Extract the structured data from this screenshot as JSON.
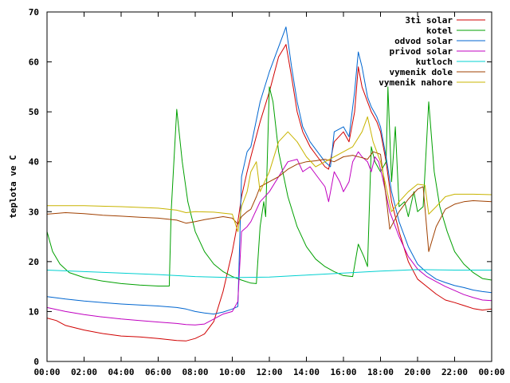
{
  "chart_data": {
    "type": "line",
    "title": "",
    "xlabel": "",
    "ylabel": "teplota ve C",
    "xlim": [
      0,
      24
    ],
    "ylim": [
      0,
      70
    ],
    "grid": false,
    "legend_position": "top-right",
    "x_tick_labels": [
      "00:00",
      "02:00",
      "04:00",
      "06:00",
      "08:00",
      "10:00",
      "12:00",
      "14:00",
      "16:00",
      "18:00",
      "20:00",
      "22:00",
      "00:00"
    ],
    "y_tick_labels": [
      "0",
      "10",
      "20",
      "30",
      "40",
      "50",
      "60",
      "70"
    ],
    "series": [
      {
        "name": "3ti solar",
        "color": "#d00000",
        "points": [
          [
            0,
            8.7
          ],
          [
            0.5,
            8.2
          ],
          [
            1,
            7.2
          ],
          [
            2,
            6.3
          ],
          [
            3,
            5.6
          ],
          [
            4,
            5.1
          ],
          [
            5,
            4.9
          ],
          [
            6,
            4.6
          ],
          [
            7,
            4.2
          ],
          [
            7.5,
            4.1
          ],
          [
            8,
            4.6
          ],
          [
            8.5,
            5.5
          ],
          [
            9,
            8
          ],
          [
            9.5,
            14
          ],
          [
            10,
            22
          ],
          [
            10.3,
            28
          ],
          [
            10.5,
            33
          ],
          [
            10.8,
            38
          ],
          [
            11,
            41
          ],
          [
            11.5,
            48
          ],
          [
            12,
            54
          ],
          [
            12.5,
            61
          ],
          [
            12.9,
            63.5
          ],
          [
            13.2,
            57
          ],
          [
            13.5,
            50
          ],
          [
            13.8,
            46
          ],
          [
            14.2,
            43
          ],
          [
            14.6,
            41
          ],
          [
            15,
            39
          ],
          [
            15.2,
            38.5
          ],
          [
            15.5,
            44
          ],
          [
            16,
            46
          ],
          [
            16.3,
            44
          ],
          [
            16.6,
            50
          ],
          [
            16.8,
            59
          ],
          [
            17,
            55
          ],
          [
            17.3,
            52
          ],
          [
            17.5,
            50
          ],
          [
            17.8,
            48
          ],
          [
            18,
            46
          ],
          [
            18.3,
            40
          ],
          [
            18.6,
            32
          ],
          [
            19,
            26
          ],
          [
            19.5,
            20
          ],
          [
            20,
            16.5
          ],
          [
            20.5,
            15
          ],
          [
            21,
            13.5
          ],
          [
            21.5,
            12.3
          ],
          [
            22,
            11.8
          ],
          [
            22.5,
            11.2
          ],
          [
            23,
            10.6
          ],
          [
            23.5,
            10.3
          ],
          [
            24,
            10.5
          ]
        ]
      },
      {
        "name": "kotel",
        "color": "#00a000",
        "points": [
          [
            0,
            26
          ],
          [
            0.3,
            22
          ],
          [
            0.7,
            19.5
          ],
          [
            1.2,
            17.8
          ],
          [
            2,
            16.8
          ],
          [
            3,
            16.1
          ],
          [
            4,
            15.6
          ],
          [
            5,
            15.3
          ],
          [
            6,
            15.1
          ],
          [
            6.6,
            15.1
          ],
          [
            6.7,
            30
          ],
          [
            7,
            50.5
          ],
          [
            7.3,
            40
          ],
          [
            7.6,
            32
          ],
          [
            8,
            26
          ],
          [
            8.5,
            22
          ],
          [
            9,
            19.5
          ],
          [
            9.5,
            18
          ],
          [
            10,
            17
          ],
          [
            10.5,
            16.3
          ],
          [
            11,
            15.7
          ],
          [
            11.3,
            15.6
          ],
          [
            11.5,
            27
          ],
          [
            11.7,
            32
          ],
          [
            11.8,
            29
          ],
          [
            12,
            55
          ],
          [
            12.2,
            52
          ],
          [
            12.5,
            42
          ],
          [
            13,
            33
          ],
          [
            13.5,
            27
          ],
          [
            14,
            23
          ],
          [
            14.5,
            20.5
          ],
          [
            15,
            19
          ],
          [
            15.5,
            18
          ],
          [
            16,
            17.2
          ],
          [
            16.5,
            17
          ],
          [
            16.8,
            23.5
          ],
          [
            17.1,
            21
          ],
          [
            17.3,
            19
          ],
          [
            17.5,
            43
          ],
          [
            17.7,
            40
          ],
          [
            18,
            38
          ],
          [
            18.3,
            40
          ],
          [
            18.4,
            55
          ],
          [
            18.6,
            36
          ],
          [
            18.8,
            47
          ],
          [
            19,
            31
          ],
          [
            19.3,
            32
          ],
          [
            19.5,
            29
          ],
          [
            19.8,
            34
          ],
          [
            20,
            30
          ],
          [
            20.3,
            31
          ],
          [
            20.6,
            52
          ],
          [
            20.9,
            38
          ],
          [
            21.2,
            31
          ],
          [
            21.6,
            26
          ],
          [
            22,
            22
          ],
          [
            22.5,
            19.5
          ],
          [
            23,
            17.8
          ],
          [
            23.5,
            16.6
          ],
          [
            24,
            16.3
          ]
        ]
      },
      {
        "name": "odvod solar",
        "color": "#0066d0",
        "points": [
          [
            0,
            13
          ],
          [
            1,
            12.5
          ],
          [
            2,
            12.1
          ],
          [
            3,
            11.8
          ],
          [
            4,
            11.5
          ],
          [
            5,
            11.3
          ],
          [
            6,
            11.1
          ],
          [
            7,
            10.8
          ],
          [
            7.5,
            10.5
          ],
          [
            8,
            10
          ],
          [
            8.5,
            9.7
          ],
          [
            9,
            9.5
          ],
          [
            9.5,
            9.9
          ],
          [
            10,
            10.5
          ],
          [
            10.3,
            11
          ],
          [
            10.5,
            37
          ],
          [
            10.8,
            42
          ],
          [
            11,
            43
          ],
          [
            11.5,
            52
          ],
          [
            12,
            58
          ],
          [
            12.5,
            63
          ],
          [
            12.9,
            67
          ],
          [
            13.2,
            59
          ],
          [
            13.5,
            52
          ],
          [
            13.8,
            47
          ],
          [
            14.2,
            44
          ],
          [
            14.6,
            42
          ],
          [
            15,
            40
          ],
          [
            15.3,
            39
          ],
          [
            15.5,
            46
          ],
          [
            16,
            47
          ],
          [
            16.3,
            45
          ],
          [
            16.6,
            54
          ],
          [
            16.8,
            62
          ],
          [
            17,
            59
          ],
          [
            17.3,
            53
          ],
          [
            17.5,
            51
          ],
          [
            17.8,
            49
          ],
          [
            18,
            47
          ],
          [
            18.3,
            41
          ],
          [
            18.6,
            34
          ],
          [
            19,
            28
          ],
          [
            19.5,
            23
          ],
          [
            20,
            19.5
          ],
          [
            20.5,
            17.8
          ],
          [
            21,
            16.5
          ],
          [
            21.5,
            15.8
          ],
          [
            22,
            15.2
          ],
          [
            22.5,
            14.8
          ],
          [
            23,
            14.3
          ],
          [
            23.5,
            14
          ],
          [
            24,
            13.8
          ]
        ]
      },
      {
        "name": "privod solar",
        "color": "#c000c0",
        "points": [
          [
            0,
            10.8
          ],
          [
            1,
            10
          ],
          [
            2,
            9.4
          ],
          [
            3,
            8.9
          ],
          [
            4,
            8.5
          ],
          [
            5,
            8.2
          ],
          [
            6,
            7.9
          ],
          [
            7,
            7.6
          ],
          [
            7.5,
            7.4
          ],
          [
            8,
            7.3
          ],
          [
            8.5,
            7.5
          ],
          [
            9,
            8.5
          ],
          [
            9.5,
            9.5
          ],
          [
            10,
            10
          ],
          [
            10.3,
            12
          ],
          [
            10.5,
            26
          ],
          [
            10.8,
            27
          ],
          [
            11,
            28
          ],
          [
            11.5,
            32
          ],
          [
            12,
            34
          ],
          [
            12.5,
            37
          ],
          [
            13,
            40
          ],
          [
            13.5,
            40.5
          ],
          [
            13.8,
            38
          ],
          [
            14.2,
            39
          ],
          [
            14.6,
            37
          ],
          [
            15,
            35
          ],
          [
            15.2,
            32
          ],
          [
            15.5,
            38
          ],
          [
            15.8,
            36
          ],
          [
            16,
            34
          ],
          [
            16.3,
            36
          ],
          [
            16.5,
            40
          ],
          [
            16.8,
            42
          ],
          [
            17,
            41
          ],
          [
            17.3,
            40
          ],
          [
            17.5,
            38
          ],
          [
            17.7,
            41
          ],
          [
            17.9,
            40
          ],
          [
            18.1,
            37
          ],
          [
            18.5,
            30
          ],
          [
            19,
            25
          ],
          [
            19.5,
            21
          ],
          [
            20,
            18.5
          ],
          [
            20.5,
            17
          ],
          [
            21,
            16
          ],
          [
            21.5,
            15
          ],
          [
            22,
            14.2
          ],
          [
            22.5,
            13.4
          ],
          [
            23,
            12.8
          ],
          [
            23.5,
            12.3
          ],
          [
            24,
            12.2
          ]
        ]
      },
      {
        "name": "kutloch",
        "color": "#00d0d0",
        "points": [
          [
            0,
            18.3
          ],
          [
            2,
            18
          ],
          [
            4,
            17.7
          ],
          [
            6,
            17.4
          ],
          [
            8,
            17
          ],
          [
            10,
            16.8
          ],
          [
            12,
            16.9
          ],
          [
            14,
            17.3
          ],
          [
            16,
            17.7
          ],
          [
            18,
            18.1
          ],
          [
            20,
            18.4
          ],
          [
            22,
            18.3
          ],
          [
            24,
            18.3
          ]
        ]
      },
      {
        "name": "vymenik dole",
        "color": "#a04000",
        "points": [
          [
            0,
            29.5
          ],
          [
            1,
            29.8
          ],
          [
            2,
            29.6
          ],
          [
            3,
            29.3
          ],
          [
            4,
            29.1
          ],
          [
            5,
            28.9
          ],
          [
            6,
            28.7
          ],
          [
            7,
            28.3
          ],
          [
            7.5,
            27.7
          ],
          [
            8,
            28
          ],
          [
            8.5,
            28.4
          ],
          [
            9,
            28.7
          ],
          [
            9.5,
            29
          ],
          [
            10,
            28.7
          ],
          [
            10.3,
            27.5
          ],
          [
            10.5,
            29
          ],
          [
            10.8,
            30
          ],
          [
            11,
            30.5
          ],
          [
            11.3,
            33
          ],
          [
            11.5,
            35
          ],
          [
            12,
            36
          ],
          [
            12.5,
            37
          ],
          [
            13,
            38.5
          ],
          [
            13.5,
            39.5
          ],
          [
            14,
            40
          ],
          [
            14.5,
            40.2
          ],
          [
            15,
            40.5
          ],
          [
            15.5,
            40
          ],
          [
            16,
            41
          ],
          [
            16.5,
            41.3
          ],
          [
            17,
            40.8
          ],
          [
            17.3,
            40.5
          ],
          [
            17.6,
            42
          ],
          [
            18,
            41.5
          ],
          [
            18.3,
            33
          ],
          [
            18.5,
            26.5
          ],
          [
            19,
            30
          ],
          [
            19.5,
            32.5
          ],
          [
            20,
            34.5
          ],
          [
            20.3,
            35
          ],
          [
            20.6,
            22
          ],
          [
            21,
            27
          ],
          [
            21.5,
            30.5
          ],
          [
            22,
            31.5
          ],
          [
            22.5,
            32
          ],
          [
            23,
            32.2
          ],
          [
            23.5,
            32.1
          ],
          [
            24,
            32
          ]
        ]
      },
      {
        "name": "vymenik nahore",
        "color": "#c8b400",
        "points": [
          [
            0,
            31.2
          ],
          [
            2,
            31.2
          ],
          [
            4,
            31
          ],
          [
            6,
            30.7
          ],
          [
            7,
            30.3
          ],
          [
            7.5,
            29.8
          ],
          [
            8,
            30
          ],
          [
            9,
            29.9
          ],
          [
            10,
            29.5
          ],
          [
            10.3,
            26
          ],
          [
            10.5,
            31
          ],
          [
            10.8,
            34
          ],
          [
            11,
            38
          ],
          [
            11.3,
            40
          ],
          [
            11.5,
            34
          ],
          [
            12,
            38
          ],
          [
            12.5,
            44
          ],
          [
            13,
            46
          ],
          [
            13.5,
            44
          ],
          [
            14,
            41
          ],
          [
            14.5,
            39
          ],
          [
            15,
            40
          ],
          [
            15.5,
            41
          ],
          [
            16,
            42
          ],
          [
            16.5,
            43
          ],
          [
            17,
            46
          ],
          [
            17.3,
            49
          ],
          [
            17.6,
            44
          ],
          [
            18,
            40
          ],
          [
            18.3,
            35
          ],
          [
            18.6,
            30
          ],
          [
            19,
            32
          ],
          [
            19.5,
            34
          ],
          [
            20,
            35.5
          ],
          [
            20.4,
            35.3
          ],
          [
            20.6,
            29.5
          ],
          [
            21,
            31
          ],
          [
            21.5,
            33
          ],
          [
            22,
            33.5
          ],
          [
            23,
            33.5
          ],
          [
            24,
            33.4
          ]
        ]
      }
    ]
  }
}
